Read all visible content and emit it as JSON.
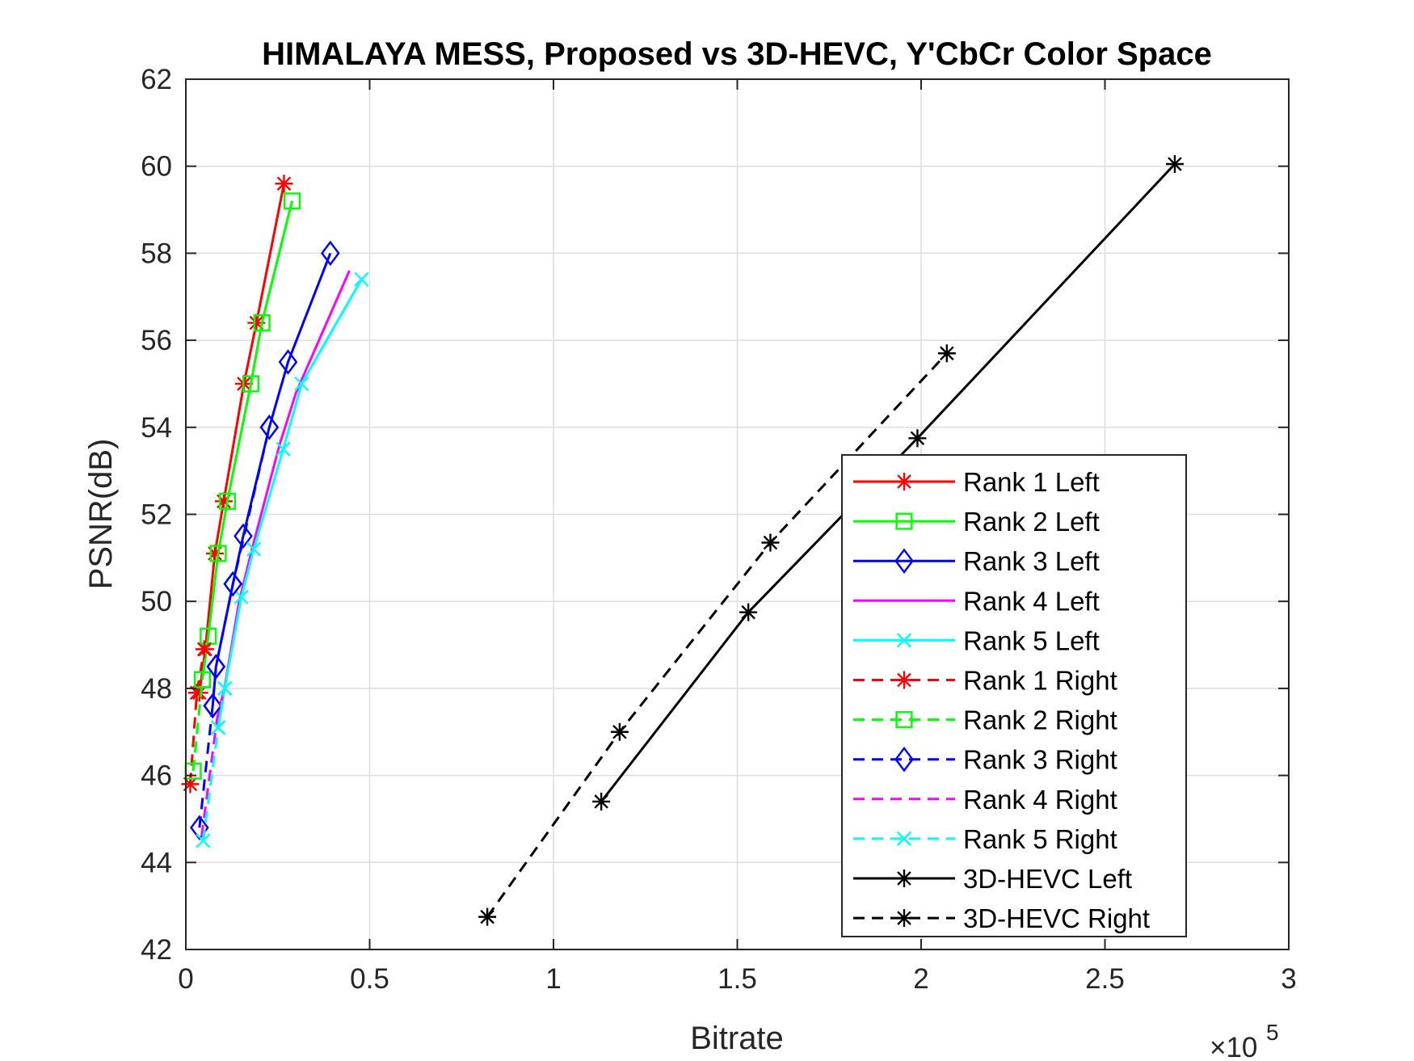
{
  "chart_data": {
    "type": "line",
    "title": "HIMALAYA MESS, Proposed vs 3D-HEVC, Y'CbCr Color Space",
    "xlabel": "Bitrate",
    "ylabel": "PSNR(dB)",
    "x_exponent_label": "×10",
    "x_exponent_power": "5",
    "xlim": [
      0,
      3
    ],
    "ylim": [
      42,
      62
    ],
    "x_ticks": [
      0,
      0.5,
      1,
      1.5,
      2,
      2.5,
      3
    ],
    "x_tick_labels": [
      "0",
      "0.5",
      "1",
      "1.5",
      "2",
      "2.5",
      "3"
    ],
    "y_ticks": [
      42,
      44,
      46,
      48,
      50,
      52,
      54,
      56,
      58,
      60,
      62
    ],
    "y_tick_labels": [
      "42",
      "44",
      "46",
      "48",
      "50",
      "52",
      "54",
      "56",
      "58",
      "60",
      "62"
    ],
    "grid": true,
    "legend_position": "bottom-right",
    "series": [
      {
        "name": "Rank 1 Left",
        "color": "#ff0000",
        "dash": "solid",
        "marker": "star",
        "x": [
          0.037,
          0.053,
          0.079,
          0.103,
          0.158,
          0.192,
          0.267
        ],
        "y": [
          47.9,
          48.9,
          51.1,
          52.3,
          55.0,
          56.4,
          59.6
        ]
      },
      {
        "name": "Rank 2 Left",
        "color": "#00ff00",
        "dash": "solid",
        "marker": "square",
        "x": [
          0.045,
          0.061,
          0.088,
          0.113,
          0.177,
          0.207,
          0.289
        ],
        "y": [
          48.2,
          49.2,
          51.1,
          52.3,
          55.0,
          56.4,
          59.2
        ]
      },
      {
        "name": "Rank 3 Left",
        "color": "#0000ff",
        "dash": "solid",
        "marker": "diamond",
        "x": [
          0.073,
          0.082,
          0.128,
          0.156,
          0.227,
          0.278,
          0.393
        ],
        "y": [
          47.6,
          48.5,
          50.4,
          51.5,
          54.0,
          55.5,
          58.0
        ]
      },
      {
        "name": "Rank 4 Left",
        "color": "#ff00ff",
        "dash": "solid",
        "marker": "none",
        "x": [
          0.085,
          0.105,
          0.145,
          0.18,
          0.255,
          0.3,
          0.445
        ],
        "y": [
          47.3,
          48.0,
          50.0,
          51.2,
          53.6,
          54.8,
          57.6
        ]
      },
      {
        "name": "Rank 5 Left",
        "color": "#00ffff",
        "dash": "solid",
        "marker": "x",
        "x": [
          0.088,
          0.106,
          0.151,
          0.185,
          0.265,
          0.315,
          0.478
        ],
        "y": [
          47.1,
          48.0,
          50.1,
          51.2,
          53.5,
          55.0,
          57.4
        ]
      },
      {
        "name": "Rank 1 Right",
        "color": "#ff0000",
        "dash": "dashed",
        "marker": "star",
        "x": [
          0.012,
          0.03,
          0.05
        ],
        "y": [
          45.8,
          47.9,
          48.9
        ]
      },
      {
        "name": "Rank 2 Right",
        "color": "#00ff00",
        "dash": "dashed",
        "marker": "square",
        "x": [
          0.02,
          0.045
        ],
        "y": [
          46.1,
          48.2
        ]
      },
      {
        "name": "Rank 3 Right",
        "color": "#0000ff",
        "dash": "dashed",
        "marker": "diamond",
        "x": [
          0.037,
          0.073,
          0.082,
          0.128,
          0.227
        ],
        "y": [
          44.8,
          47.6,
          48.5,
          50.4,
          54.0
        ]
      },
      {
        "name": "Rank 4 Right",
        "color": "#ff00ff",
        "dash": "dashed",
        "marker": "none",
        "x": [
          0.043,
          0.085,
          0.105
        ],
        "y": [
          44.6,
          47.3,
          48.0
        ]
      },
      {
        "name": "Rank 5 Right",
        "color": "#00ffff",
        "dash": "dashed",
        "marker": "x",
        "x": [
          0.047,
          0.088,
          0.106
        ],
        "y": [
          44.5,
          47.1,
          48.0
        ]
      },
      {
        "name": "3D-HEVC Left",
        "color": "#000000",
        "dash": "solid",
        "marker": "star",
        "x": [
          1.13,
          1.53,
          1.99,
          2.69
        ],
        "y": [
          45.4,
          49.75,
          53.75,
          60.05
        ]
      },
      {
        "name": "3D-HEVC Right",
        "color": "#000000",
        "dash": "dashed",
        "marker": "star",
        "x": [
          0.82,
          1.18,
          1.59,
          2.07
        ],
        "y": [
          42.75,
          47.0,
          51.35,
          55.7
        ]
      }
    ]
  }
}
